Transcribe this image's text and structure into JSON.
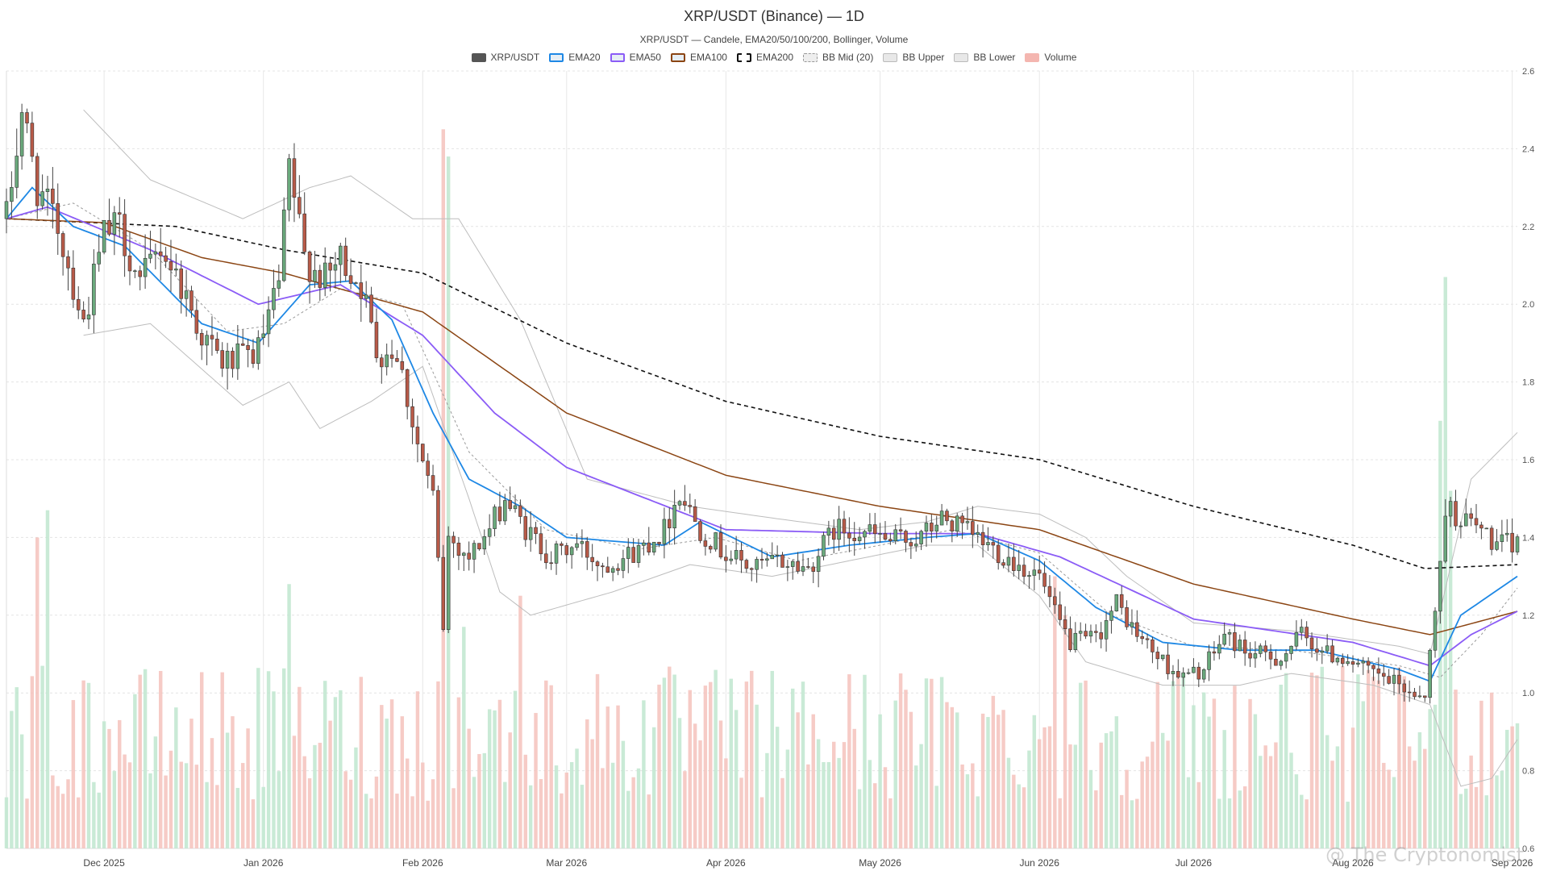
{
  "title": "XRP/USDT (Binance) — 1D",
  "subtitle": "XRP/USDT — Candele, EMA20/50/100/200, Bollinger, Volume",
  "watermark": "@ The Cryptonomist",
  "legend": [
    {
      "label": "XRP/USDT",
      "color": "#555555",
      "style": "solid-fill"
    },
    {
      "label": "EMA20",
      "color": "#1e88e5",
      "style": "outline"
    },
    {
      "label": "EMA50",
      "color": "#8b5cf6",
      "style": "outline"
    },
    {
      "label": "EMA100",
      "color": "#8b4513",
      "style": "outline"
    },
    {
      "label": "EMA200",
      "color": "#111111",
      "style": "dashed"
    },
    {
      "label": "BB Mid (20)",
      "color": "#999999",
      "style": "dashed-light"
    },
    {
      "label": "BB Upper",
      "color": "#bbbbbb",
      "style": "light"
    },
    {
      "label": "BB Lower",
      "color": "#bbbbbb",
      "style": "light"
    },
    {
      "label": "Volume",
      "color": "#f4b6b0",
      "style": "fill"
    }
  ],
  "chart_data": {
    "type": "candlestick",
    "x_start": "2025-11-12",
    "x_end": "2026-09-02",
    "x_tick_labels": [
      {
        "date": "2025-12-01",
        "label": "Dec 2025"
      },
      {
        "date": "2026-01-01",
        "label": "Jan 2026"
      },
      {
        "date": "2026-02-01",
        "label": "Feb 2026"
      },
      {
        "date": "2026-03-01",
        "label": "Mar 2026"
      },
      {
        "date": "2026-04-01",
        "label": "Apr 2026"
      },
      {
        "date": "2026-05-01",
        "label": "May 2026"
      },
      {
        "date": "2026-06-01",
        "label": "Jun 2026"
      },
      {
        "date": "2026-07-01",
        "label": "Jul 2026"
      },
      {
        "date": "2026-08-01",
        "label": "Aug 2026"
      },
      {
        "date": "2026-09-01",
        "label": "Sep 2026"
      }
    ],
    "y_ticks": [
      0.6,
      0.8,
      1.0,
      1.2,
      1.4,
      1.6,
      1.8,
      2.0,
      2.2,
      2.4,
      2.6
    ],
    "y_tick_labels": [
      "0.6",
      "0.8",
      "1.0",
      "1.2",
      "1.4",
      "1.6",
      "1.8",
      "2.0",
      "2.2",
      "2.4",
      "2.6"
    ],
    "ylim": [
      0.6,
      2.6
    ],
    "grid": true,
    "legend_position": "top-center",
    "colors": {
      "up": "#6aa97c",
      "down": "#b85a48",
      "vol_up": "#bfe6cf",
      "vol_down": "#f4c2bc"
    },
    "close_keypoints": [
      [
        "2025-11-12",
        2.22
      ],
      [
        "2025-11-15",
        2.5
      ],
      [
        "2025-11-18",
        2.3
      ],
      [
        "2025-11-22",
        2.2
      ],
      [
        "2025-11-27",
        1.95
      ],
      [
        "2025-12-01",
        2.18
      ],
      [
        "2025-12-04",
        2.2
      ],
      [
        "2025-12-08",
        2.05
      ],
      [
        "2025-12-12",
        2.15
      ],
      [
        "2025-12-16",
        2.05
      ],
      [
        "2025-12-20",
        1.92
      ],
      [
        "2025-12-24",
        1.85
      ],
      [
        "2025-12-28",
        1.86
      ],
      [
        "2025-12-31",
        1.88
      ],
      [
        "2026-01-04",
        2.05
      ],
      [
        "2026-01-06",
        2.35
      ],
      [
        "2026-01-09",
        2.12
      ],
      [
        "2026-01-13",
        2.06
      ],
      [
        "2026-01-16",
        2.12
      ],
      [
        "2026-01-20",
        2.05
      ],
      [
        "2026-01-23",
        1.88
      ],
      [
        "2026-01-27",
        1.88
      ],
      [
        "2026-01-31",
        1.64
      ],
      [
        "2026-02-03",
        1.5
      ],
      [
        "2026-02-05",
        1.17
      ],
      [
        "2026-02-06",
        1.4
      ],
      [
        "2026-02-10",
        1.35
      ],
      [
        "2026-02-14",
        1.42
      ],
      [
        "2026-02-17",
        1.5
      ],
      [
        "2026-02-21",
        1.42
      ],
      [
        "2026-02-26",
        1.35
      ],
      [
        "2026-03-03",
        1.38
      ],
      [
        "2026-03-08",
        1.33
      ],
      [
        "2026-03-14",
        1.36
      ],
      [
        "2026-03-20",
        1.42
      ],
      [
        "2026-03-23",
        1.52
      ],
      [
        "2026-03-27",
        1.42
      ],
      [
        "2026-04-01",
        1.36
      ],
      [
        "2026-04-06",
        1.32
      ],
      [
        "2026-04-11",
        1.34
      ],
      [
        "2026-04-17",
        1.32
      ],
      [
        "2026-04-22",
        1.42
      ],
      [
        "2026-04-27",
        1.42
      ],
      [
        "2026-05-03",
        1.39
      ],
      [
        "2026-05-09",
        1.4
      ],
      [
        "2026-05-13",
        1.45
      ],
      [
        "2026-05-17",
        1.42
      ],
      [
        "2026-05-22",
        1.38
      ],
      [
        "2026-05-28",
        1.33
      ],
      [
        "2026-06-01",
        1.3
      ],
      [
        "2026-06-04",
        1.2
      ],
      [
        "2026-06-07",
        1.13
      ],
      [
        "2026-06-12",
        1.14
      ],
      [
        "2026-06-16",
        1.23
      ],
      [
        "2026-06-20",
        1.15
      ],
      [
        "2026-06-25",
        1.08
      ],
      [
        "2026-06-29",
        1.04
      ],
      [
        "2026-07-03",
        1.06
      ],
      [
        "2026-07-07",
        1.15
      ],
      [
        "2026-07-12",
        1.1
      ],
      [
        "2026-07-18",
        1.09
      ],
      [
        "2026-07-22",
        1.15
      ],
      [
        "2026-07-27",
        1.1
      ],
      [
        "2026-07-31",
        1.09
      ],
      [
        "2026-08-03",
        1.06
      ],
      [
        "2026-08-08",
        1.03
      ],
      [
        "2026-08-13",
        1.0
      ],
      [
        "2026-08-15",
        1.0
      ],
      [
        "2026-08-17",
        1.2
      ],
      [
        "2026-08-19",
        1.48
      ],
      [
        "2026-08-22",
        1.45
      ],
      [
        "2026-08-26",
        1.42
      ],
      [
        "2026-08-29",
        1.38
      ],
      [
        "2026-09-02",
        1.38
      ]
    ],
    "ema200_keypoints": [
      [
        "2025-11-12",
        2.22
      ],
      [
        "2025-12-15",
        2.2
      ],
      [
        "2026-01-05",
        2.14
      ],
      [
        "2026-02-01",
        2.08
      ],
      [
        "2026-03-01",
        1.9
      ],
      [
        "2026-04-01",
        1.75
      ],
      [
        "2026-05-01",
        1.66
      ],
      [
        "2026-06-01",
        1.6
      ],
      [
        "2026-07-01",
        1.48
      ],
      [
        "2026-08-01",
        1.38
      ],
      [
        "2026-08-15",
        1.32
      ],
      [
        "2026-09-02",
        1.33
      ]
    ],
    "ema100_keypoints": [
      [
        "2025-11-12",
        2.22
      ],
      [
        "2025-12-01",
        2.21
      ],
      [
        "2025-12-20",
        2.12
      ],
      [
        "2026-01-05",
        2.08
      ],
      [
        "2026-02-01",
        1.98
      ],
      [
        "2026-03-01",
        1.72
      ],
      [
        "2026-04-01",
        1.56
      ],
      [
        "2026-05-01",
        1.48
      ],
      [
        "2026-06-01",
        1.42
      ],
      [
        "2026-07-01",
        1.28
      ],
      [
        "2026-08-01",
        1.19
      ],
      [
        "2026-08-16",
        1.15
      ],
      [
        "2026-09-02",
        1.21
      ]
    ],
    "ema50_keypoints": [
      [
        "2025-11-12",
        2.22
      ],
      [
        "2025-11-20",
        2.25
      ],
      [
        "2025-12-10",
        2.14
      ],
      [
        "2025-12-31",
        2.0
      ],
      [
        "2026-01-16",
        2.05
      ],
      [
        "2026-02-01",
        1.92
      ],
      [
        "2026-02-15",
        1.72
      ],
      [
        "2026-03-01",
        1.58
      ],
      [
        "2026-04-01",
        1.42
      ],
      [
        "2026-05-01",
        1.41
      ],
      [
        "2026-05-20",
        1.41
      ],
      [
        "2026-06-05",
        1.35
      ],
      [
        "2026-07-01",
        1.19
      ],
      [
        "2026-08-01",
        1.13
      ],
      [
        "2026-08-16",
        1.07
      ],
      [
        "2026-08-24",
        1.15
      ],
      [
        "2026-09-02",
        1.21
      ]
    ],
    "ema20_keypoints": [
      [
        "2025-11-12",
        2.22
      ],
      [
        "2025-11-17",
        2.3
      ],
      [
        "2025-11-25",
        2.2
      ],
      [
        "2025-12-05",
        2.15
      ],
      [
        "2025-12-20",
        1.95
      ],
      [
        "2025-12-31",
        1.9
      ],
      [
        "2026-01-10",
        2.05
      ],
      [
        "2026-01-18",
        2.06
      ],
      [
        "2026-01-26",
        1.96
      ],
      [
        "2026-02-03",
        1.72
      ],
      [
        "2026-02-10",
        1.55
      ],
      [
        "2026-02-20",
        1.48
      ],
      [
        "2026-03-01",
        1.4
      ],
      [
        "2026-03-20",
        1.38
      ],
      [
        "2026-03-27",
        1.44
      ],
      [
        "2026-04-10",
        1.35
      ],
      [
        "2026-04-25",
        1.38
      ],
      [
        "2026-05-10",
        1.4
      ],
      [
        "2026-05-20",
        1.41
      ],
      [
        "2026-06-01",
        1.34
      ],
      [
        "2026-06-12",
        1.22
      ],
      [
        "2026-06-25",
        1.13
      ],
      [
        "2026-07-10",
        1.11
      ],
      [
        "2026-07-25",
        1.11
      ],
      [
        "2026-08-10",
        1.06
      ],
      [
        "2026-08-16",
        1.03
      ],
      [
        "2026-08-22",
        1.2
      ],
      [
        "2026-09-02",
        1.3
      ]
    ],
    "bb_mid_keypoints": [
      [
        "2025-11-12",
        2.22
      ],
      [
        "2025-11-25",
        2.26
      ],
      [
        "2025-12-10",
        2.14
      ],
      [
        "2025-12-25",
        1.93
      ],
      [
        "2026-01-05",
        1.95
      ],
      [
        "2026-01-16",
        2.04
      ],
      [
        "2026-01-28",
        2.0
      ],
      [
        "2026-02-10",
        1.62
      ],
      [
        "2026-02-25",
        1.42
      ],
      [
        "2026-03-15",
        1.37
      ],
      [
        "2026-03-30",
        1.4
      ],
      [
        "2026-04-15",
        1.34
      ],
      [
        "2026-05-01",
        1.38
      ],
      [
        "2026-05-15",
        1.42
      ],
      [
        "2026-06-01",
        1.36
      ],
      [
        "2026-06-15",
        1.2
      ],
      [
        "2026-07-01",
        1.12
      ],
      [
        "2026-07-20",
        1.11
      ],
      [
        "2026-08-10",
        1.07
      ],
      [
        "2026-08-18",
        1.04
      ],
      [
        "2026-08-26",
        1.15
      ],
      [
        "2026-09-02",
        1.27
      ]
    ],
    "bb_upper_keypoints": [
      [
        "2025-11-27",
        2.5
      ],
      [
        "2025-12-10",
        2.32
      ],
      [
        "2025-12-28",
        2.22
      ],
      [
        "2026-01-10",
        2.3
      ],
      [
        "2026-01-18",
        2.33
      ],
      [
        "2026-01-30",
        2.22
      ],
      [
        "2026-02-08",
        2.22
      ],
      [
        "2026-02-20",
        1.96
      ],
      [
        "2026-03-05",
        1.55
      ],
      [
        "2026-03-25",
        1.48
      ],
      [
        "2026-04-10",
        1.45
      ],
      [
        "2026-04-27",
        1.42
      ],
      [
        "2026-05-10",
        1.44
      ],
      [
        "2026-05-20",
        1.48
      ],
      [
        "2026-06-01",
        1.46
      ],
      [
        "2026-06-10",
        1.4
      ],
      [
        "2026-06-18",
        1.3
      ],
      [
        "2026-07-01",
        1.18
      ],
      [
        "2026-07-20",
        1.16
      ],
      [
        "2026-08-10",
        1.12
      ],
      [
        "2026-08-16",
        1.1
      ],
      [
        "2026-08-24",
        1.55
      ],
      [
        "2026-09-02",
        1.67
      ]
    ],
    "bb_lower_keypoints": [
      [
        "2025-11-27",
        1.92
      ],
      [
        "2025-12-10",
        1.95
      ],
      [
        "2025-12-28",
        1.74
      ],
      [
        "2026-01-06",
        1.8
      ],
      [
        "2026-01-12",
        1.68
      ],
      [
        "2026-01-22",
        1.75
      ],
      [
        "2026-02-01",
        1.84
      ],
      [
        "2026-02-10",
        1.5
      ],
      [
        "2026-02-16",
        1.26
      ],
      [
        "2026-02-22",
        1.2
      ],
      [
        "2026-03-10",
        1.26
      ],
      [
        "2026-03-25",
        1.33
      ],
      [
        "2026-04-10",
        1.3
      ],
      [
        "2026-04-25",
        1.34
      ],
      [
        "2026-05-10",
        1.38
      ],
      [
        "2026-05-20",
        1.38
      ],
      [
        "2026-06-01",
        1.25
      ],
      [
        "2026-06-10",
        1.08
      ],
      [
        "2026-06-25",
        1.02
      ],
      [
        "2026-07-10",
        1.02
      ],
      [
        "2026-07-20",
        1.05
      ],
      [
        "2026-08-05",
        1.02
      ],
      [
        "2026-08-16",
        0.97
      ],
      [
        "2026-08-22",
        0.76
      ],
      [
        "2026-08-28",
        0.78
      ],
      [
        "2026-09-02",
        0.88
      ]
    ],
    "volume_spikes": [
      [
        "2026-02-05",
        2.45
      ],
      [
        "2026-02-06",
        2.38
      ],
      [
        "2026-02-09",
        1.17
      ],
      [
        "2026-02-20",
        1.25
      ],
      [
        "2026-01-06",
        1.28
      ],
      [
        "2025-11-20",
        1.47
      ],
      [
        "2025-11-18",
        1.4
      ],
      [
        "2026-08-19",
        2.07
      ],
      [
        "2026-08-20",
        1.52
      ],
      [
        "2026-08-18",
        1.7
      ],
      [
        "2026-06-04",
        1.3
      ],
      [
        "2026-06-06",
        1.2
      ]
    ]
  }
}
